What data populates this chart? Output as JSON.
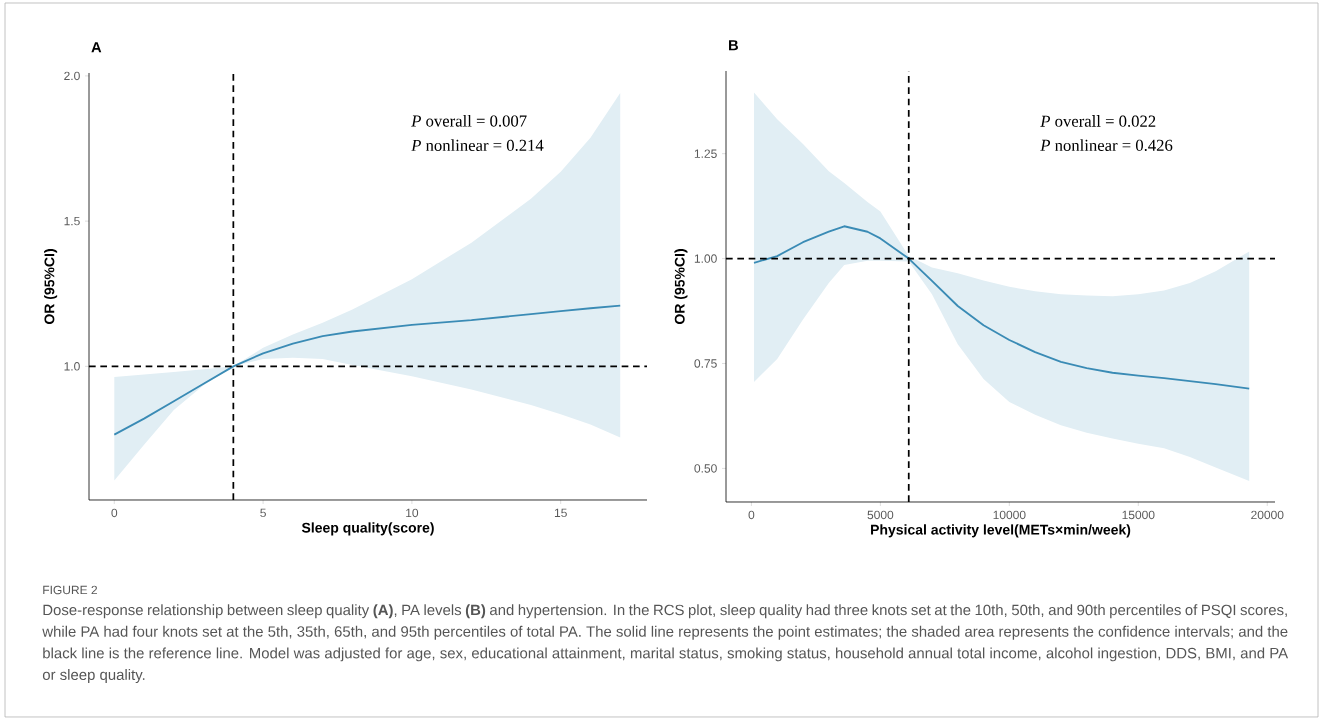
{
  "chart_data": [
    {
      "type": "line",
      "title": "A",
      "xlabel": "Sleep quality(score)",
      "ylabel": "OR (95%CI)",
      "xlim": [
        -0.85,
        17.9
      ],
      "ylim": [
        0.54,
        2.01
      ],
      "xticks": [
        0,
        5,
        10,
        15
      ],
      "yticks": [
        {
          "value": 1,
          "label": "1.0"
        },
        {
          "value": 1.5,
          "label": "1.5"
        },
        {
          "value": 2,
          "label": "2.0"
        }
      ],
      "series": [
        {
          "color": "#3a8bb5",
          "x": [
            0,
            1,
            2,
            3,
            4,
            5,
            6,
            7,
            8,
            10,
            12,
            14,
            15,
            16,
            17
          ],
          "values": [
            0.765,
            0.82,
            0.88,
            0.94,
            1.0,
            1.045,
            1.078,
            1.104,
            1.12,
            1.143,
            1.159,
            1.18,
            1.19,
            1.2,
            1.209
          ],
          "lower": [
            0.607,
            0.73,
            0.85,
            0.935,
            1.0,
            1.025,
            1.03,
            1.025,
            1.005,
            0.966,
            0.92,
            0.867,
            0.835,
            0.8,
            0.755
          ],
          "upper": [
            0.963,
            0.972,
            0.981,
            0.99,
            1.0,
            1.064,
            1.11,
            1.15,
            1.196,
            1.3,
            1.426,
            1.577,
            1.67,
            1.787,
            1.941
          ]
        }
      ],
      "ref_lines": [
        {
          "axis": "x",
          "value": 4,
          "color": "#000000",
          "line_style": "dashed"
        },
        {
          "axis": "y",
          "value": 1,
          "color": "#000000",
          "line_style": "dashed"
        }
      ],
      "annotations": [
        "*P* overall = 0.007",
        "*P* nonlinear = 0.214",
        "FIGURE 2",
        "Dose-response relationship between sleep quality **(A)**, PA levels **(B)** and hypertension. In the RCS plot, sleep quality had three knots set at the 10th, 50th, and 90th percentiles of PSQI scores, while PA had four knots set at the 5th, 35th, 65th, and 95th percentiles of total PA. The solid line represents the point estimates; the shaded area represents the confidence intervals; and the black line is the reference line. Model was adjusted for age, sex, educational attainment, marital status, smoking status, household annual total income, alcohol ingestion, DDS, BMI, and PA or sleep quality."
      ]
    },
    {
      "type": "line",
      "title": "B",
      "xlabel": "Physical activity level(METs×min/week)",
      "ylabel": "OR (95%CI)",
      "xlim": [
        -985,
        20300
      ],
      "ylim": [
        0.42,
        1.447
      ],
      "xticks": [
        0,
        5000,
        10000,
        15000,
        20000
      ],
      "yticks": [
        {
          "value": 0.5,
          "label": "0.50"
        },
        {
          "value": 0.75,
          "label": "0.75"
        },
        {
          "value": 1,
          "label": "1.00"
        },
        {
          "value": 1.25,
          "label": "1.25"
        }
      ],
      "series": [
        {
          "color": "#3a8bb5",
          "x": [
            100,
            1000,
            2000,
            3000,
            3600,
            4500,
            5000,
            6100,
            7000,
            8000,
            9000,
            10000,
            11000,
            12000,
            13000,
            14000,
            15000,
            16000,
            17000,
            18000,
            19300
          ],
          "values": [
            0.99,
            1.006,
            1.039,
            1.064,
            1.077,
            1.064,
            1.048,
            1.0,
            0.947,
            0.887,
            0.841,
            0.806,
            0.777,
            0.754,
            0.739,
            0.728,
            0.721,
            0.715,
            0.708,
            0.701,
            0.69
          ],
          "lower": [
            0.706,
            0.761,
            0.855,
            0.942,
            0.985,
            0.995,
            0.995,
            0.993,
            0.915,
            0.796,
            0.713,
            0.658,
            0.628,
            0.603,
            0.585,
            0.571,
            0.559,
            0.548,
            0.527,
            0.502,
            0.47
          ],
          "upper": [
            1.396,
            1.332,
            1.273,
            1.208,
            1.18,
            1.135,
            1.112,
            1.006,
            0.979,
            0.965,
            0.948,
            0.933,
            0.922,
            0.915,
            0.912,
            0.91,
            0.915,
            0.924,
            0.942,
            0.97,
            1.017
          ]
        }
      ],
      "ref_lines": [
        {
          "axis": "x",
          "value": 6100,
          "color": "#000000",
          "line_style": "dashed"
        },
        {
          "axis": "y",
          "value": 1,
          "color": "#000000",
          "line_style": "dashed"
        }
      ],
      "annotations": [
        "*P* overall = 0.022",
        "*P* nonlinear = 0.426"
      ]
    }
  ]
}
